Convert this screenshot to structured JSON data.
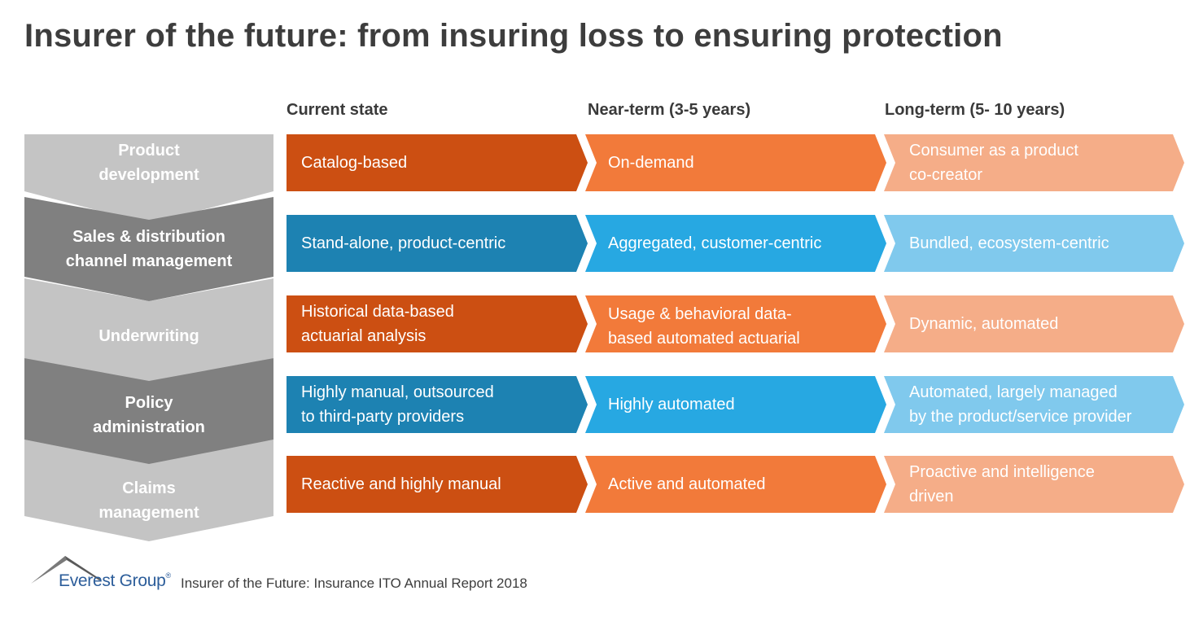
{
  "title": "Insurer of the future: from insuring loss to ensuring protection",
  "columns": {
    "current": "Current state",
    "near": "Near-term (3-5 years)",
    "long": "Long-term (5- 10 years)"
  },
  "colors": {
    "orange_dark": "#cc4f12",
    "orange_mid": "#f27a3a",
    "orange_light": "#f5ad88",
    "blue_dark": "#1d82b2",
    "blue_mid": "#27a8e2",
    "blue_light": "#80c9ed",
    "gray_light": "#c4c4c4",
    "gray_dark": "#808080"
  },
  "rows": [
    {
      "stage": "Product development",
      "stage_lines": [
        "Product",
        "development"
      ],
      "current": [
        "Catalog-based"
      ],
      "near": [
        "On-demand"
      ],
      "long": [
        "Consumer as a product",
        "co-creator"
      ]
    },
    {
      "stage": "Sales & distribution channel management",
      "stage_lines": [
        "Sales & distribution",
        "channel management"
      ],
      "current": [
        "Stand-alone, product-centric"
      ],
      "near": [
        "Aggregated, customer-centric"
      ],
      "long": [
        "Bundled, ecosystem-centric"
      ]
    },
    {
      "stage": "Underwriting",
      "stage_lines": [
        "Underwriting"
      ],
      "current": [
        "Historical data-based",
        "actuarial analysis"
      ],
      "near": [
        "Usage & behavioral data-",
        "based automated actuarial"
      ],
      "long": [
        "Dynamic, automated"
      ]
    },
    {
      "stage": "Policy administration",
      "stage_lines": [
        "Policy",
        "administration"
      ],
      "current": [
        "Highly manual, outsourced",
        "to third-party providers"
      ],
      "near": [
        "Highly automated"
      ],
      "long": [
        "Automated, largely managed",
        "by the product/service provider"
      ]
    },
    {
      "stage": "Claims management",
      "stage_lines": [
        "Claims",
        "management"
      ],
      "current": [
        "Reactive and highly manual"
      ],
      "near": [
        "Active and automated"
      ],
      "long": [
        "Proactive and intelligence",
        "driven"
      ]
    }
  ],
  "footer": {
    "brand": "Everest Group",
    "registered": "®",
    "source": "Insurer of the Future: Insurance ITO Annual Report 2018"
  }
}
